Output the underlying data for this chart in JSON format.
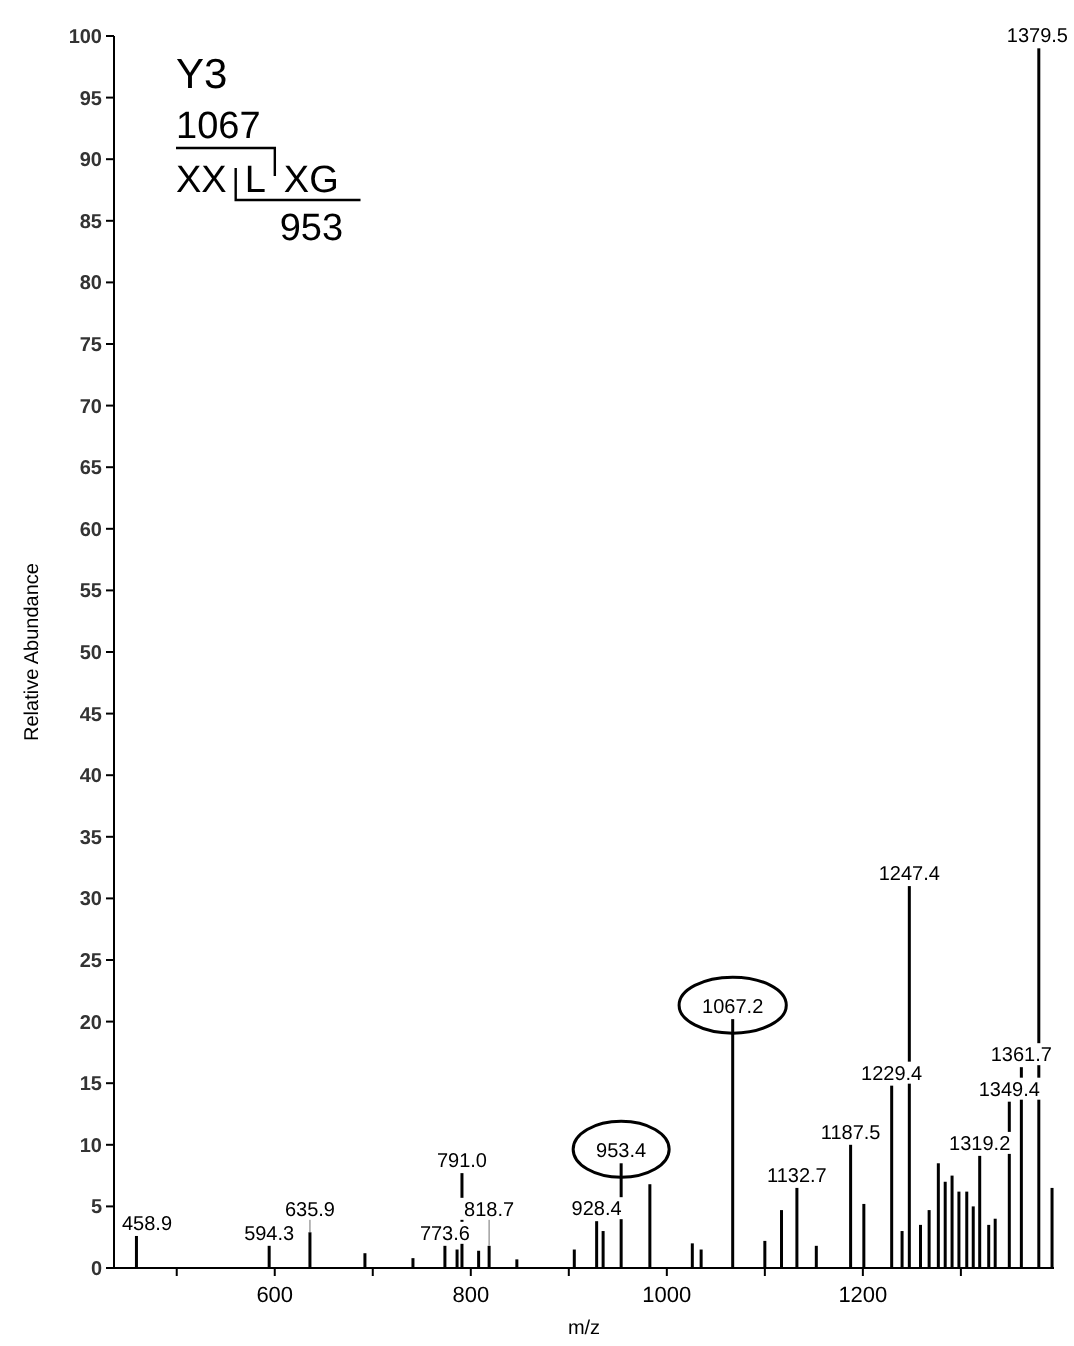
{
  "chart_data": {
    "type": "bar",
    "xlabel": "m/z",
    "ylabel": "Relative Abundance",
    "annotations": [
      "Y3",
      "1067",
      "XX L XG",
      "953",
      {
        "text": "458.9",
        "x": 458.9,
        "y": 2.6
      },
      {
        "text": "594.3",
        "x": 594.3,
        "y": 1.8
      },
      {
        "text": "635.9",
        "x": 635.9,
        "y": 2.9
      },
      {
        "text": "773.6",
        "x": 773.6,
        "y": 1.8
      },
      {
        "text": "791.0",
        "x": 791.0,
        "y": 7.7
      },
      {
        "text": "818.7",
        "x": 818.7,
        "y": 1.8
      },
      {
        "text": "928.4",
        "x": 928.4,
        "y": 3.8
      },
      {
        "text": "953.4",
        "x": 953.4,
        "y": 8.5
      },
      {
        "text": "1067.2",
        "x": 1067.2,
        "y": 20.2
      },
      {
        "text": "1132.7",
        "x": 1132.7,
        "y": 6.5
      },
      {
        "text": "1187.5",
        "x": 1187.5,
        "y": 10.0
      },
      {
        "text": "1229.4",
        "x": 1229.4,
        "y": 14.8
      },
      {
        "text": "1247.4",
        "x": 1247.4,
        "y": 31.0
      },
      {
        "text": "1319.2",
        "x": 1319.2,
        "y": 9.1
      },
      {
        "text": "1349.4",
        "x": 1349.4,
        "y": 13.5
      },
      {
        "text": "1361.7",
        "x": 1361.7,
        "y": 16.3
      },
      {
        "text": "1379.5",
        "x": 1379.5,
        "y": 99.0
      }
    ],
    "x": [
      458.9,
      594.3,
      635.9,
      692,
      741,
      773.6,
      786,
      791.0,
      808,
      818.7,
      847,
      905.6,
      928.4,
      935,
      953.4,
      982.7,
      1026,
      1035,
      1067.2,
      1100,
      1117,
      1132.7,
      1152.5,
      1187.5,
      1201,
      1229.4,
      1240,
      1247.4,
      1258.8,
      1267.6,
      1277,
      1284,
      1291,
      1298,
      1306,
      1312.6,
      1319.2,
      1328.4,
      1335,
      1349.4,
      1361.7,
      1379.5,
      1393
    ],
    "values": [
      2.6,
      1.8,
      2.9,
      1.2,
      0.8,
      1.8,
      1.5,
      7.7,
      1.4,
      1.8,
      0.7,
      1.5,
      3.8,
      3.0,
      8.5,
      6.8,
      2.0,
      1.5,
      20.2,
      2.2,
      4.7,
      6.5,
      1.8,
      10.0,
      5.2,
      14.8,
      3.0,
      31.0,
      3.5,
      4.7,
      8.5,
      7.0,
      7.5,
      6.2,
      6.2,
      5.0,
      9.1,
      3.5,
      4.0,
      13.5,
      16.3,
      99.0,
      6.5
    ],
    "color": "#000000",
    "xlim": [
      436,
      1395
    ],
    "xticks": [
      {
        "value": 500,
        "label": null
      },
      600,
      {
        "value": 700,
        "label": null
      },
      800,
      {
        "value": 900,
        "label": null
      },
      1000,
      {
        "value": 1100,
        "label": null
      },
      1200,
      {
        "value": 1300,
        "label": null
      }
    ],
    "ylim": [
      0,
      100
    ],
    "yticks": [
      0,
      5,
      10,
      15,
      20,
      25,
      30,
      35,
      40,
      45,
      50,
      55,
      60,
      65,
      70,
      75,
      80,
      85,
      90,
      95,
      100
    ],
    "grid": false
  }
}
